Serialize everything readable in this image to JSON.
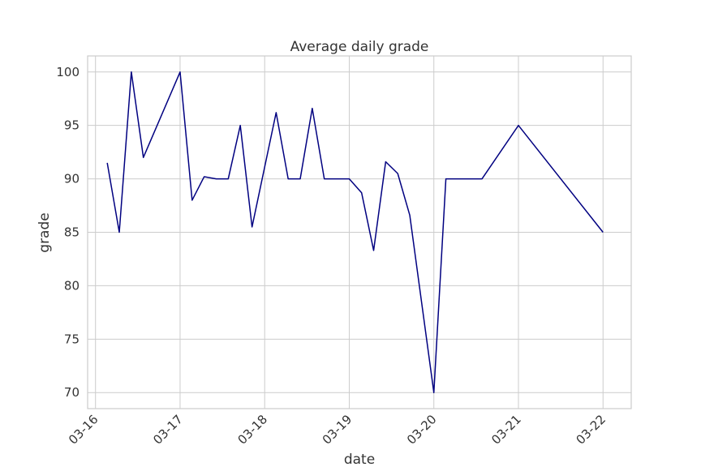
{
  "chart_data": {
    "type": "line",
    "title": "Average daily grade",
    "xlabel": "date",
    "ylabel": "grade",
    "x_axis_type": "date",
    "xlim": [
      "2017-03-15 21:46",
      "2017-03-22 08:00"
    ],
    "ylim": [
      68.5,
      101.5
    ],
    "x_ticks": [
      {
        "date": "2017-03-16 00:00",
        "label": "03-16"
      },
      {
        "date": "2017-03-17 00:00",
        "label": "03-17"
      },
      {
        "date": "2017-03-18 00:00",
        "label": "03-18"
      },
      {
        "date": "2017-03-19 00:00",
        "label": "03-19"
      },
      {
        "date": "2017-03-20 00:00",
        "label": "03-20"
      },
      {
        "date": "2017-03-21 00:00",
        "label": "03-21"
      },
      {
        "date": "2017-03-22 00:00",
        "label": "03-22"
      }
    ],
    "y_ticks": [
      70,
      75,
      80,
      85,
      90,
      95,
      100
    ],
    "grid": true,
    "legend": "none",
    "colors": {
      "line": "#000080",
      "grid": "#cccccc",
      "text": "#333333"
    },
    "series": [
      {
        "points": [
          {
            "x": "2017-03-16 03:20",
            "y": 91.5
          },
          {
            "x": "2017-03-16 06:45",
            "y": 85.0
          },
          {
            "x": "2017-03-16 10:10",
            "y": 100.0
          },
          {
            "x": "2017-03-16 13:35",
            "y": 92.0
          },
          {
            "x": "2017-03-17 00:00",
            "y": 100.0
          },
          {
            "x": "2017-03-17 03:25",
            "y": 88.0
          },
          {
            "x": "2017-03-17 06:50",
            "y": 90.2
          },
          {
            "x": "2017-03-17 10:15",
            "y": 90.0
          },
          {
            "x": "2017-03-17 13:40",
            "y": 90.0
          },
          {
            "x": "2017-03-17 17:05",
            "y": 95.0
          },
          {
            "x": "2017-03-17 20:25",
            "y": 85.5
          },
          {
            "x": "2017-03-18 03:15",
            "y": 96.2
          },
          {
            "x": "2017-03-18 06:40",
            "y": 90.0
          },
          {
            "x": "2017-03-18 10:05",
            "y": 90.0
          },
          {
            "x": "2017-03-18 13:30",
            "y": 96.6
          },
          {
            "x": "2017-03-18 16:55",
            "y": 90.0
          },
          {
            "x": "2017-03-18 20:20",
            "y": 90.0
          },
          {
            "x": "2017-03-19 00:00",
            "y": 90.0
          },
          {
            "x": "2017-03-19 03:30",
            "y": 88.7
          },
          {
            "x": "2017-03-19 06:55",
            "y": 83.3
          },
          {
            "x": "2017-03-19 10:20",
            "y": 91.6
          },
          {
            "x": "2017-03-19 13:45",
            "y": 90.5
          },
          {
            "x": "2017-03-19 17:10",
            "y": 86.6
          },
          {
            "x": "2017-03-20 00:00",
            "y": 70.0
          },
          {
            "x": "2017-03-20 03:25",
            "y": 90.0
          },
          {
            "x": "2017-03-20 06:50",
            "y": 90.0
          },
          {
            "x": "2017-03-20 10:15",
            "y": 90.0
          },
          {
            "x": "2017-03-20 13:40",
            "y": 90.0
          },
          {
            "x": "2017-03-21 00:00",
            "y": 95.0
          },
          {
            "x": "2017-03-22 00:00",
            "y": 85.0
          }
        ]
      }
    ]
  }
}
